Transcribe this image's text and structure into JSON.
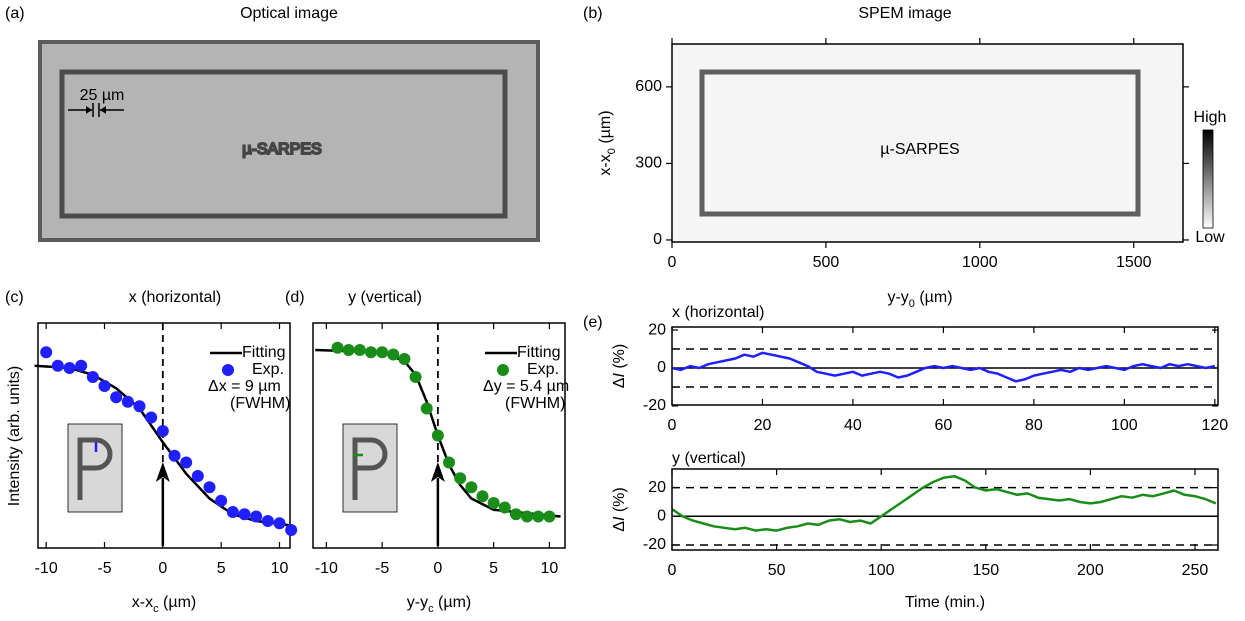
{
  "chart_data": [
    {
      "type": "image",
      "label": "(a)",
      "title": "Optical image",
      "text": "µ-SARPES",
      "annotation": "25 µm"
    },
    {
      "type": "image",
      "label": "(b)",
      "title": "SPEM image",
      "text": "µ-SARPES",
      "xlabel": [
        "y-y",
        "0",
        "  (µm)"
      ],
      "ylabel": [
        "x-x",
        "0",
        "  (µm)"
      ],
      "xlim": [
        0,
        1660
      ],
      "xticks": [
        0,
        500,
        1000,
        1500
      ],
      "ylim": [
        -8,
        768
      ],
      "yticks": [
        0,
        300,
        600
      ],
      "colorbar_labels": [
        "High",
        "Low"
      ]
    },
    {
      "type": "scatter",
      "label": "(c)",
      "title": "x (horizontal)",
      "title_color": "#1f1fff",
      "xlabel": [
        "x-x",
        "c",
        " (µm)"
      ],
      "ylabel": "Intensity (arb. units)",
      "xlim": [
        -10.7,
        10.9
      ],
      "xticks": [
        -10,
        -5,
        0,
        5,
        10
      ],
      "ylim": [
        0,
        1
      ],
      "marker_x": 0,
      "annotations": [
        "Δx = 9 µm",
        "(FWHM)"
      ],
      "series": [
        {
          "name": "Fitting",
          "color": "#000000",
          "x": [
            -11,
            -8,
            -6,
            -4,
            -2,
            0,
            2,
            4,
            6,
            8,
            11
          ],
          "values": [
            0.81,
            0.8,
            0.77,
            0.71,
            0.62,
            0.47,
            0.33,
            0.22,
            0.15,
            0.12,
            0.1
          ]
        },
        {
          "name": "Exp.",
          "color": "#1f1fff",
          "x": [
            -10,
            -9,
            -8,
            -7,
            -6,
            -5,
            -4,
            -3,
            -2,
            -1,
            0,
            1,
            2,
            3,
            4,
            5,
            6,
            7,
            8,
            9,
            10,
            11
          ],
          "values": [
            0.87,
            0.81,
            0.8,
            0.81,
            0.76,
            0.72,
            0.67,
            0.65,
            0.63,
            0.58,
            0.52,
            0.41,
            0.38,
            0.32,
            0.27,
            0.21,
            0.16,
            0.15,
            0.14,
            0.12,
            0.11,
            0.08
          ]
        }
      ]
    },
    {
      "type": "scatter",
      "label": "(d)",
      "title": "y (vertical)",
      "title_color": "#1a8c1a",
      "xlabel": [
        "y-y",
        "c",
        " (µm)"
      ],
      "xlim": [
        -11.2,
        11.4
      ],
      "xticks": [
        -10,
        -5,
        0,
        5,
        10
      ],
      "ylim": [
        0,
        1
      ],
      "marker_x": 0,
      "annotations": [
        "Δy = 5.4 µm",
        "(FWHM)"
      ],
      "series": [
        {
          "name": "Fitting",
          "color": "#000000",
          "x": [
            -11,
            -5,
            -3,
            -2,
            -1,
            0,
            1,
            2,
            3,
            5,
            11
          ],
          "values": [
            0.88,
            0.87,
            0.83,
            0.77,
            0.65,
            0.5,
            0.37,
            0.28,
            0.22,
            0.17,
            0.14
          ]
        },
        {
          "name": "Exp.",
          "color": "#1a8c1a",
          "x": [
            -9,
            -8,
            -7,
            -6,
            -5,
            -4,
            -3,
            -2,
            -1,
            0,
            1,
            2,
            3,
            4,
            5,
            6,
            7,
            8,
            9,
            10
          ],
          "values": [
            0.89,
            0.88,
            0.88,
            0.87,
            0.87,
            0.86,
            0.84,
            0.76,
            0.62,
            0.5,
            0.38,
            0.31,
            0.27,
            0.23,
            0.2,
            0.18,
            0.15,
            0.14,
            0.14,
            0.14
          ]
        }
      ]
    },
    {
      "type": "line",
      "label": "(e)",
      "title": "x (horizontal)",
      "title_color": "#1f1fff",
      "ylabel": [
        "Δ",
        "I",
        " (%)"
      ],
      "xlim": [
        0,
        120.7
      ],
      "xticks": [
        0,
        20,
        40,
        60,
        80,
        100,
        120
      ],
      "ylim": [
        -19.5,
        21.6
      ],
      "yticks": [
        -20,
        0,
        20
      ],
      "dashed_lines": [
        -10,
        10
      ],
      "solid_lines": [
        0
      ],
      "series": [
        {
          "color": "#1f1fff",
          "x": [
            0,
            2,
            4,
            6,
            8,
            10,
            12,
            14,
            16,
            18,
            20,
            22,
            24,
            26,
            28,
            30,
            32,
            34,
            36,
            38,
            40,
            42,
            44,
            46,
            48,
            50,
            52,
            54,
            56,
            58,
            60,
            62,
            64,
            66,
            68,
            70,
            72,
            74,
            76,
            78,
            80,
            82,
            84,
            86,
            88,
            90,
            92,
            94,
            96,
            98,
            100,
            102,
            104,
            106,
            108,
            110,
            112,
            114,
            116,
            118,
            120
          ],
          "values": [
            0,
            -1,
            1,
            0,
            2,
            3,
            4,
            5,
            7,
            6,
            8,
            7,
            6,
            5,
            3,
            1,
            -2,
            -3,
            -4,
            -3,
            -2,
            -4,
            -3,
            -2,
            -3,
            -5,
            -4,
            -2,
            0,
            1,
            0,
            1,
            0,
            -1,
            0,
            -2,
            -3,
            -5,
            -7,
            -6,
            -4,
            -3,
            -2,
            -1,
            -2,
            0,
            -1,
            0,
            1,
            0,
            -1,
            1,
            2,
            1,
            0,
            2,
            1,
            2,
            1,
            0,
            1
          ]
        }
      ]
    },
    {
      "type": "line",
      "title": "y (vertical)",
      "title_color": "#1a8c1a",
      "xlabel": "Time (min.)",
      "ylabel": [
        "Δ",
        "I",
        " (%)"
      ],
      "xlim": [
        0,
        261
      ],
      "xticks": [
        0,
        50,
        100,
        150,
        200,
        250
      ],
      "ylim": [
        -23.5,
        33
      ],
      "yticks": [
        -20,
        0,
        20
      ],
      "dashed_lines": [
        -20,
        20
      ],
      "solid_lines": [
        0
      ],
      "series": [
        {
          "color": "#1a8c1a",
          "x": [
            0,
            5,
            10,
            15,
            20,
            25,
            30,
            35,
            40,
            45,
            50,
            55,
            60,
            65,
            70,
            75,
            80,
            85,
            90,
            95,
            100,
            105,
            110,
            115,
            120,
            125,
            130,
            135,
            140,
            145,
            150,
            155,
            160,
            165,
            170,
            175,
            180,
            185,
            190,
            195,
            200,
            205,
            210,
            215,
            220,
            225,
            230,
            235,
            240,
            245,
            250,
            255,
            260
          ],
          "values": [
            5,
            0,
            -3,
            -5,
            -7,
            -8,
            -9,
            -8,
            -10,
            -9,
            -10,
            -8,
            -7,
            -5,
            -6,
            -3,
            -2,
            -4,
            -3,
            -5,
            0,
            5,
            10,
            15,
            20,
            24,
            27,
            28,
            25,
            20,
            18,
            19,
            17,
            15,
            16,
            13,
            12,
            11,
            12,
            10,
            9,
            10,
            12,
            14,
            13,
            15,
            14,
            16,
            18,
            15,
            14,
            12,
            9
          ]
        }
      ]
    }
  ]
}
